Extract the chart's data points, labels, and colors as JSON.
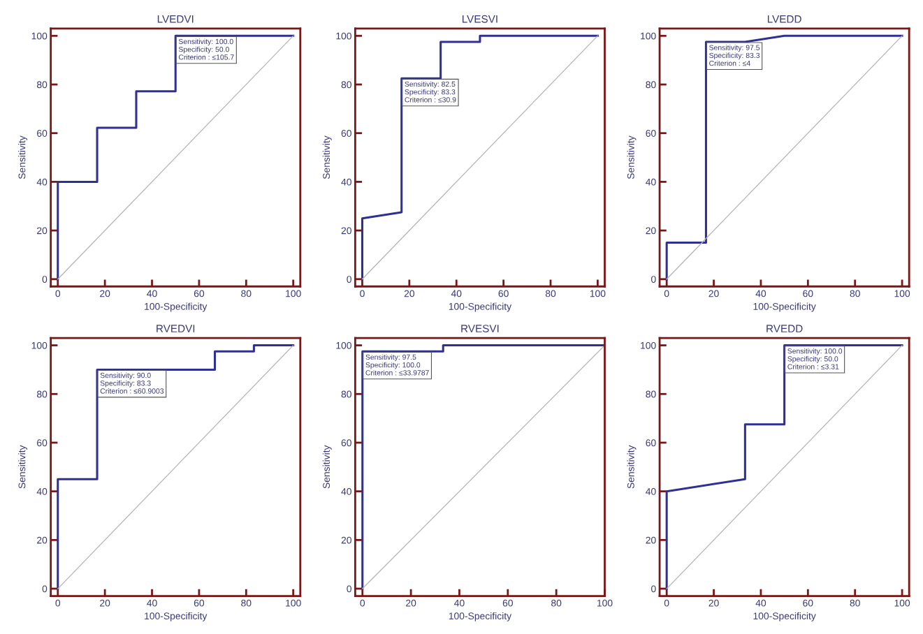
{
  "chart_data": [
    {
      "type": "line",
      "title": "LVEDVI",
      "xlabel": "100-Specificity",
      "ylabel": "Sensitivity",
      "xlim": [
        -3,
        103
      ],
      "ylim": [
        -3,
        103
      ],
      "xticks": [
        0,
        20,
        40,
        60,
        80,
        100
      ],
      "yticks": [
        0,
        20,
        40,
        60,
        80,
        100
      ],
      "grid": false,
      "legend": false,
      "series": [
        {
          "color": "#2e3192",
          "x": [
            0,
            0,
            16.7,
            16.7,
            33.3,
            33.3,
            50,
            50,
            100
          ],
          "values": [
            0,
            40,
            40,
            62.2,
            62.2,
            77.2,
            77.2,
            100,
            100
          ]
        },
        {
          "color": "#b4b4b4",
          "x": [
            0,
            100
          ],
          "values": [
            0,
            100
          ]
        }
      ],
      "annotations": [
        {
          "text": "Sensitivity: 100.0\nSpecificity: 50.0\nCriterion : ≤105.7",
          "x": 50,
          "y": 100
        }
      ]
    },
    {
      "type": "line",
      "title": "LVESVI",
      "xlabel": "100-Specificity",
      "ylabel": "Sensitivity",
      "xlim": [
        -3,
        103
      ],
      "ylim": [
        -3,
        103
      ],
      "xticks": [
        0,
        20,
        40,
        60,
        80,
        100
      ],
      "yticks": [
        0,
        20,
        40,
        60,
        80,
        100
      ],
      "grid": false,
      "legend": false,
      "series": [
        {
          "color": "#2e3192",
          "x": [
            0,
            0,
            16.7,
            16.7,
            33.3,
            33.3,
            50,
            50,
            100
          ],
          "values": [
            0,
            25,
            27.5,
            82.5,
            82.5,
            97.5,
            97.5,
            100,
            100
          ]
        },
        {
          "color": "#b4b4b4",
          "x": [
            0,
            100
          ],
          "values": [
            0,
            100
          ]
        }
      ],
      "annotations": [
        {
          "text": "Sensitivity: 82.5\nSpecificity: 83.3\nCriterion : ≤30.9",
          "x": 16.7,
          "y": 82.5
        }
      ]
    },
    {
      "type": "line",
      "title": "LVEDD",
      "xlabel": "100-Specificity",
      "ylabel": "Sensitivity",
      "xlim": [
        -3,
        103
      ],
      "ylim": [
        -3,
        103
      ],
      "xticks": [
        0,
        20,
        40,
        60,
        80,
        100
      ],
      "yticks": [
        0,
        20,
        40,
        60,
        80,
        100
      ],
      "grid": false,
      "legend": false,
      "series": [
        {
          "color": "#2e3192",
          "x": [
            0,
            0,
            16.7,
            16.7,
            33.3,
            50,
            100
          ],
          "values": [
            0,
            15,
            15,
            97.5,
            97.5,
            100,
            100
          ]
        },
        {
          "color": "#b4b4b4",
          "x": [
            0,
            100
          ],
          "values": [
            0,
            100
          ]
        }
      ],
      "annotations": [
        {
          "text": "Sensitivity: 97.5\nSpecificity: 83.3\nCriterion : ≤4",
          "x": 16.7,
          "y": 97.5
        }
      ]
    },
    {
      "type": "line",
      "title": "RVEDVI",
      "xlabel": "100-Specificity",
      "ylabel": "Sensitivity",
      "xlim": [
        -3,
        103
      ],
      "ylim": [
        -3,
        103
      ],
      "xticks": [
        0,
        20,
        40,
        60,
        80,
        100
      ],
      "yticks": [
        0,
        20,
        40,
        60,
        80,
        100
      ],
      "grid": false,
      "legend": false,
      "series": [
        {
          "color": "#2e3192",
          "x": [
            0,
            0,
            16.7,
            16.7,
            66.7,
            66.7,
            83.3,
            83.3,
            100
          ],
          "values": [
            0,
            45,
            45,
            90,
            90,
            97.5,
            97.5,
            100,
            100
          ]
        },
        {
          "color": "#b4b4b4",
          "x": [
            0,
            100
          ],
          "values": [
            0,
            100
          ]
        }
      ],
      "annotations": [
        {
          "text": "Sensitivity: 90.0\nSpecificity: 83.3\nCriterion : ≤60.9003",
          "x": 16.7,
          "y": 90
        }
      ]
    },
    {
      "type": "line",
      "title": "RVESVI",
      "xlabel": "100-Specificity",
      "ylabel": "Sensitivity",
      "xlim": [
        -3,
        100
      ],
      "ylim": [
        -3,
        103
      ],
      "xticks": [
        0,
        20,
        40,
        60,
        80,
        100
      ],
      "yticks": [
        0,
        20,
        40,
        60,
        80,
        100
      ],
      "grid": false,
      "legend": false,
      "series": [
        {
          "color": "#2e3192",
          "x": [
            0,
            0,
            33.3,
            33.3,
            100
          ],
          "values": [
            0,
            97.5,
            97.5,
            100,
            100
          ]
        },
        {
          "color": "#b4b4b4",
          "x": [
            0,
            100
          ],
          "values": [
            0,
            100
          ]
        }
      ],
      "annotations": [
        {
          "text": "Sensitivity: 97.5\nSpecificity: 100.0\nCriterion : ≤33.9787",
          "x": 0,
          "y": 97.5
        }
      ]
    },
    {
      "type": "line",
      "title": "RVEDD",
      "xlabel": "100-Specificity",
      "ylabel": "Sensitivity",
      "xlim": [
        -3,
        103
      ],
      "ylim": [
        -3,
        103
      ],
      "xticks": [
        0,
        20,
        40,
        60,
        80,
        100
      ],
      "yticks": [
        0,
        20,
        40,
        60,
        80,
        100
      ],
      "grid": false,
      "legend": false,
      "series": [
        {
          "color": "#2e3192",
          "x": [
            0,
            0,
            33.3,
            33.3,
            50,
            50,
            100
          ],
          "values": [
            0,
            40,
            45,
            67.5,
            67.5,
            100,
            100
          ]
        },
        {
          "color": "#b4b4b4",
          "x": [
            0,
            100
          ],
          "values": [
            0,
            100
          ]
        }
      ],
      "annotations": [
        {
          "text": "Sensitivity: 100.0\nSpecificity: 50.0\nCriterion : ≤3.31",
          "x": 50,
          "y": 100
        }
      ]
    }
  ]
}
